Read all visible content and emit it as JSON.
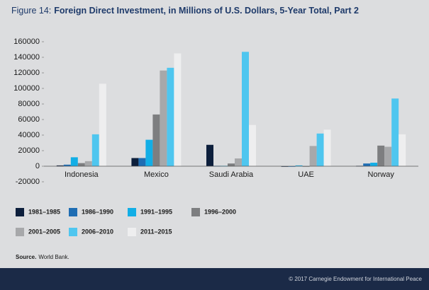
{
  "chart_data": {
    "type": "bar",
    "figure_label": "Figure 14:",
    "title": "Foreign Direct Investment, in Millions of U.S. Dollars, 5-Year Total, Part 2",
    "categories": [
      "Indonesia",
      "Mexico",
      "Saudi Arabia",
      "UAE",
      "Norway"
    ],
    "series": [
      {
        "name": "1981–1985",
        "color": "#0d1f3c",
        "values": [
          1000,
          10500,
          27500,
          -500,
          500
        ]
      },
      {
        "name": "1986–1990",
        "color": "#1f6db3",
        "values": [
          2000,
          10500,
          500,
          0,
          3500
        ]
      },
      {
        "name": "1991–1995",
        "color": "#12aee6",
        "values": [
          11500,
          34000,
          500,
          1000,
          4500
        ]
      },
      {
        "name": "1996–2000",
        "color": "#7d7e80",
        "values": [
          4000,
          66500,
          3500,
          0,
          26500
        ]
      },
      {
        "name": "2001–2005",
        "color": "#a7a8aa",
        "values": [
          6500,
          123000,
          10000,
          26000,
          25000
        ]
      },
      {
        "name": "2006–2010",
        "color": "#4fc6ef",
        "values": [
          41000,
          126500,
          147000,
          42000,
          87000
        ]
      },
      {
        "name": "2011–2015",
        "color": "#eeeeef",
        "values": [
          106000,
          145000,
          53000,
          47000,
          41000
        ]
      }
    ],
    "ylim": [
      -20000,
      160000
    ],
    "yticks": [
      -20000,
      0,
      20000,
      40000,
      60000,
      80000,
      100000,
      120000,
      140000,
      160000
    ],
    "grid": false,
    "legend": "bottom",
    "source_label": "Source.",
    "source": "World Bank."
  },
  "footer": "© 2017 Carnegie Endowment for International Peace"
}
